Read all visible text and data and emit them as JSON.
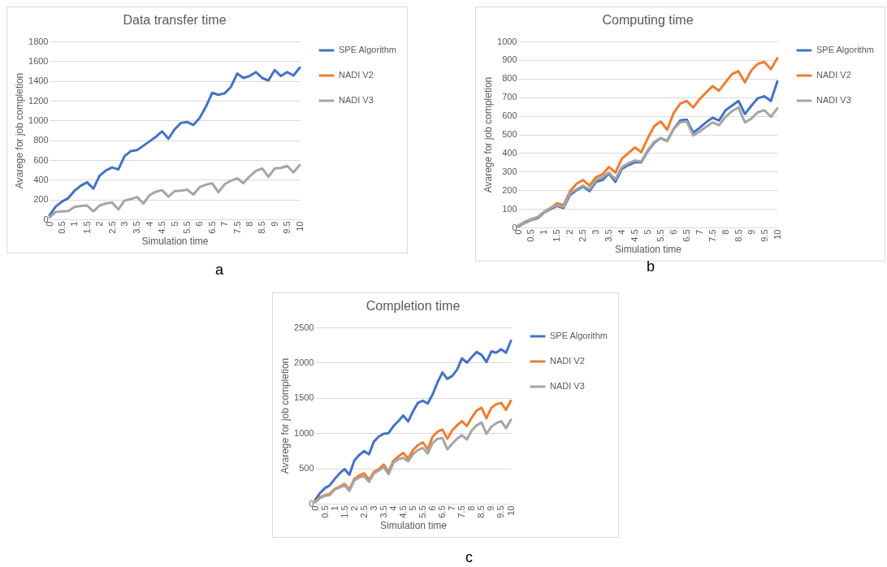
{
  "chart_data": [
    {
      "type": "line",
      "title": "Data transfer time",
      "xlabel": "Simulation time",
      "ylabel": "Avarege for job completion",
      "annotations": [
        "a"
      ],
      "x": [
        0,
        0.25,
        0.5,
        0.75,
        1,
        1.25,
        1.5,
        1.75,
        2,
        2.25,
        2.5,
        2.75,
        3,
        3.25,
        3.5,
        3.75,
        4,
        4.25,
        4.5,
        4.75,
        5,
        5.25,
        5.5,
        5.75,
        6,
        6.25,
        6.5,
        6.75,
        7,
        7.25,
        7.5,
        7.75,
        8,
        8.25,
        8.5,
        8.75,
        9,
        9.25,
        9.5,
        9.75,
        10
      ],
      "xlim": [
        0,
        10
      ],
      "xticks": [
        0,
        0.5,
        1,
        1.5,
        2,
        2.5,
        3,
        3.5,
        4,
        4.5,
        5,
        5.5,
        6,
        6.5,
        7,
        7.5,
        8,
        8.5,
        9,
        9.5,
        10
      ],
      "ylim": [
        0,
        1800
      ],
      "yticks": [
        0,
        200,
        400,
        600,
        800,
        1000,
        1200,
        1400,
        1600,
        1800
      ],
      "grid": "y",
      "legend": "right",
      "series": [
        {
          "name": "SPE Algorithm",
          "color": "#4472c4",
          "values": [
            40,
            130,
            180,
            215,
            290,
            340,
            375,
            310,
            440,
            495,
            525,
            505,
            640,
            690,
            700,
            745,
            790,
            835,
            890,
            815,
            910,
            975,
            985,
            955,
            1025,
            1140,
            1280,
            1260,
            1275,
            1340,
            1475,
            1430,
            1450,
            1490,
            1430,
            1405,
            1510,
            1450,
            1490,
            1455,
            1535
          ]
        },
        {
          "name": "NADI V2",
          "color": "#ed7d31",
          "values": [
            null,
            null,
            null,
            null,
            null,
            null,
            null,
            null,
            null,
            null,
            null,
            null,
            null,
            null,
            null,
            null,
            null,
            null,
            null,
            null,
            null,
            null,
            null,
            null,
            null,
            null,
            null,
            null,
            null,
            null,
            null,
            null,
            null,
            null,
            null,
            null,
            null,
            null,
            null,
            null,
            null
          ]
        },
        {
          "name": "NADI V3",
          "color": "#a5a5a5",
          "values": [
            20,
            75,
            80,
            85,
            125,
            135,
            140,
            80,
            140,
            160,
            170,
            100,
            190,
            205,
            225,
            160,
            245,
            280,
            295,
            230,
            285,
            290,
            300,
            250,
            325,
            350,
            365,
            275,
            355,
            390,
            415,
            365,
            435,
            490,
            515,
            430,
            515,
            520,
            540,
            475,
            550
          ]
        }
      ]
    },
    {
      "type": "line",
      "title": "Computing time",
      "xlabel": "Simulation time",
      "ylabel": "Avarege for job completion",
      "annotations": [
        "b"
      ],
      "x": [
        0,
        0.25,
        0.5,
        0.75,
        1,
        1.25,
        1.5,
        1.75,
        2,
        2.25,
        2.5,
        2.75,
        3,
        3.25,
        3.5,
        3.75,
        4,
        4.25,
        4.5,
        4.75,
        5,
        5.25,
        5.5,
        5.75,
        6,
        6.25,
        6.5,
        6.75,
        7,
        7.25,
        7.5,
        7.75,
        8,
        8.25,
        8.5,
        8.75,
        9,
        9.25,
        9.5,
        9.75,
        10
      ],
      "xlim": [
        0,
        10
      ],
      "xticks": [
        0,
        0.5,
        1,
        1.5,
        2,
        2.5,
        3,
        3.5,
        4,
        4.5,
        5,
        5.5,
        6,
        6.5,
        7,
        7.5,
        8,
        8.5,
        9,
        9.5,
        10
      ],
      "ylim": [
        0,
        1000
      ],
      "yticks": [
        0,
        100,
        200,
        300,
        400,
        500,
        600,
        700,
        800,
        900,
        1000
      ],
      "grid": "y",
      "legend": "right",
      "series": [
        {
          "name": "SPE Algorithm",
          "color": "#4472c4",
          "values": [
            5,
            25,
            40,
            50,
            80,
            100,
            115,
            105,
            175,
            200,
            220,
            195,
            245,
            255,
            290,
            245,
            315,
            335,
            350,
            350,
            410,
            455,
            480,
            465,
            530,
            575,
            580,
            510,
            535,
            565,
            590,
            575,
            630,
            655,
            680,
            610,
            655,
            695,
            705,
            680,
            785
          ]
        },
        {
          "name": "NADI V2",
          "color": "#ed7d31",
          "values": [
            10,
            30,
            45,
            55,
            85,
            105,
            130,
            120,
            195,
            235,
            255,
            225,
            270,
            285,
            325,
            295,
            370,
            400,
            430,
            405,
            480,
            545,
            570,
            525,
            615,
            665,
            680,
            645,
            690,
            725,
            760,
            735,
            780,
            825,
            840,
            780,
            845,
            880,
            890,
            850,
            910
          ]
        },
        {
          "name": "NADI V3",
          "color": "#a5a5a5",
          "values": [
            8,
            28,
            42,
            55,
            82,
            105,
            120,
            110,
            185,
            205,
            225,
            205,
            255,
            270,
            295,
            260,
            325,
            345,
            360,
            355,
            415,
            460,
            480,
            465,
            530,
            565,
            570,
            495,
            515,
            540,
            565,
            550,
            595,
            625,
            645,
            565,
            585,
            620,
            630,
            595,
            640
          ]
        }
      ]
    },
    {
      "type": "line",
      "title": "Completion time",
      "xlabel": "Simulation time",
      "ylabel": "Avarege for job completion",
      "annotations": [
        "c"
      ],
      "x": [
        0,
        0.25,
        0.5,
        0.75,
        1,
        1.25,
        1.5,
        1.75,
        2,
        2.25,
        2.5,
        2.75,
        3,
        3.25,
        3.5,
        3.75,
        4,
        4.25,
        4.5,
        4.75,
        5,
        5.25,
        5.5,
        5.75,
        6,
        6.25,
        6.5,
        6.75,
        7,
        7.25,
        7.5,
        7.75,
        8,
        8.25,
        8.5,
        8.75,
        9,
        9.25,
        9.5,
        9.75,
        10
      ],
      "xlim": [
        0,
        10
      ],
      "xticks": [
        0,
        0.5,
        1,
        1.5,
        2,
        2.5,
        3,
        3.5,
        4,
        4.5,
        5,
        5.5,
        6,
        6.5,
        7,
        7.5,
        8,
        8.5,
        9,
        9.5,
        10
      ],
      "ylim": [
        0,
        2500
      ],
      "yticks": [
        0,
        500,
        1000,
        1500,
        2000,
        2500
      ],
      "grid": "y",
      "legend": "right",
      "series": [
        {
          "name": "SPE Algorithm",
          "color": "#4472c4",
          "values": [
            50,
            150,
            220,
            260,
            350,
            430,
            490,
            410,
            610,
            690,
            745,
            700,
            880,
            950,
            990,
            1000,
            1100,
            1170,
            1250,
            1165,
            1310,
            1430,
            1460,
            1420,
            1550,
            1720,
            1860,
            1770,
            1810,
            1900,
            2060,
            2000,
            2080,
            2150,
            2110,
            2010,
            2160,
            2140,
            2190,
            2140,
            2310
          ]
        },
        {
          "name": "NADI V2",
          "color": "#ed7d31",
          "values": [
            30,
            90,
            120,
            140,
            210,
            240,
            280,
            200,
            350,
            400,
            430,
            340,
            450,
            490,
            555,
            450,
            610,
            670,
            720,
            640,
            760,
            830,
            870,
            770,
            950,
            1020,
            1050,
            920,
            1040,
            1110,
            1170,
            1100,
            1220,
            1320,
            1360,
            1210,
            1360,
            1410,
            1430,
            1330,
            1460
          ]
        },
        {
          "name": "NADI V3",
          "color": "#a5a5a5",
          "values": [
            20,
            80,
            110,
            120,
            200,
            230,
            260,
            180,
            330,
            370,
            390,
            310,
            430,
            470,
            520,
            420,
            580,
            630,
            650,
            600,
            700,
            760,
            790,
            710,
            860,
            920,
            930,
            770,
            850,
            920,
            970,
            910,
            1040,
            1110,
            1150,
            990,
            1090,
            1140,
            1170,
            1070,
            1190
          ]
        }
      ]
    }
  ]
}
